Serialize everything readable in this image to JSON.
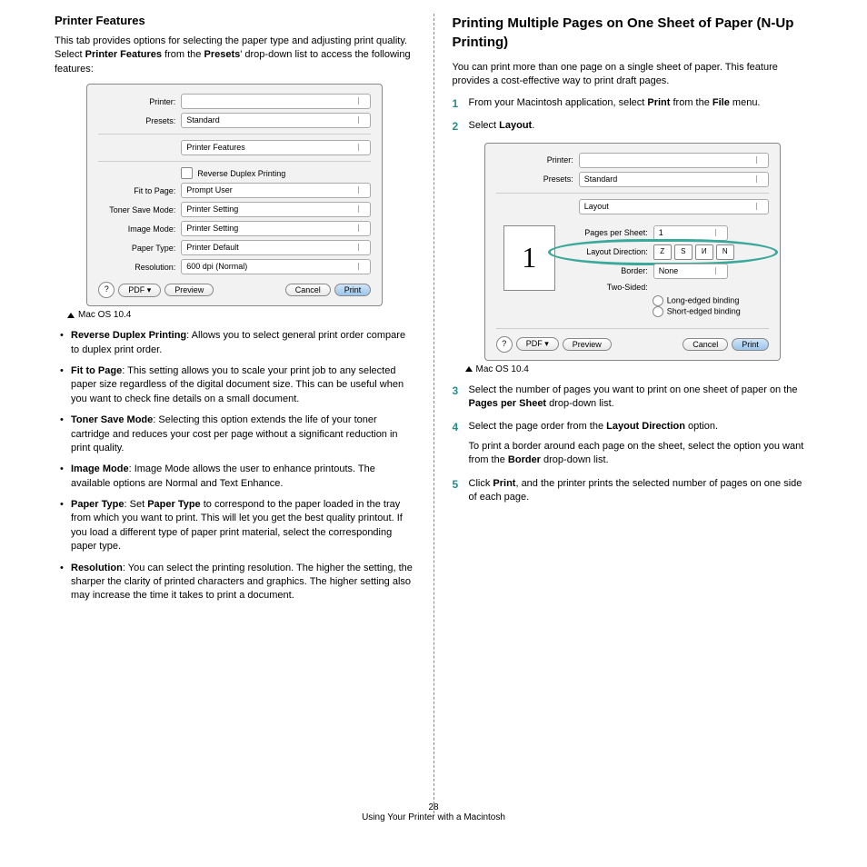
{
  "left": {
    "heading": "Printer Features",
    "intro": "This tab provides options for selecting the paper type and adjusting print quality. Select <b>Printer Features</b> from the <b>Presets</b>' drop-down list to access the following features:",
    "dialog1": {
      "printer_label": "Printer:",
      "presets_label": "Presets:",
      "presets_value": "Standard",
      "section_value": "Printer Features",
      "reverse": "Reverse Duplex Printing",
      "fit_label": "Fit to Page:",
      "fit_value": "Prompt User",
      "toner_label": "Toner Save Mode:",
      "toner_value": "Printer Setting",
      "image_label": "Image Mode:",
      "image_value": "Printer Setting",
      "paper_label": "Paper Type:",
      "paper_value": "Printer Default",
      "res_label": "Resolution:",
      "res_value": "600 dpi (Normal)",
      "pdf": "PDF ▾",
      "preview": "Preview",
      "cancel": "Cancel",
      "print": "Print"
    },
    "caption": "Mac OS 10.4",
    "items": [
      "<b>Reverse Duplex Printing</b>: Allows you to select general print order compare to duplex print order.",
      "<b>Fit to Page</b>: This setting allows you to scale your print job to any selected paper size regardless of the digital document size. This can be useful when you want to check fine details on a small document.",
      "<b>Toner Save Mode</b>: Selecting this option extends the life of your toner cartridge and reduces your cost per page without a significant reduction in print quality.",
      "<b>Image Mode</b>: Image Mode allows the user to enhance printouts. The available options are Normal and Text Enhance.",
      "<b>Paper Type</b>: Set <b>Paper Type</b> to correspond to the paper loaded in the tray from which you want to print. This will let you get the best quality printout. If you load a different type of paper print material, select the corresponding paper type.",
      "<b>Resolution</b>: You can select the printing resolution. The higher the setting, the sharper the clarity of printed characters and graphics. The higher setting also may increase the time it takes to print a document."
    ]
  },
  "right": {
    "heading": "Printing Multiple Pages on One Sheet of Paper (N-Up Printing)",
    "intro": "You can print more than one page on a single sheet of paper. This feature provides a cost-effective way to print draft pages.",
    "step1": "From your Macintosh application, select <b>Print</b> from the <b>File</b> menu.",
    "step2": "Select <b>Layout</b>.",
    "dialog2": {
      "printer_label": "Printer:",
      "presets_label": "Presets:",
      "presets_value": "Standard",
      "section_value": "Layout",
      "pps_label": "Pages per Sheet:",
      "pps_value": "1",
      "dir_label": "Layout Direction:",
      "border_label": "Border:",
      "border_value": "None",
      "two_label": "Two-Sided:",
      "long": "Long-edged binding",
      "short": "Short-edged binding",
      "pdf": "PDF ▾",
      "preview": "Preview",
      "cancel": "Cancel",
      "print": "Print",
      "preview_num": "1"
    },
    "caption": "Mac OS 10.4",
    "step3": "Select the number of pages you want to print on one sheet of paper on the <b>Pages per Sheet</b> drop-down list.",
    "step4a": "Select the page order from the <b>Layout Direction</b> option.",
    "step4b": "To print a border around each page on the sheet, select the option you want from the <b>Border</b> drop-down list.",
    "step5": "Click <b>Print</b>, and the printer prints the selected number of pages on one side of each page."
  },
  "footer": {
    "page": "28",
    "title": "Using Your Printer with a Macintosh"
  }
}
